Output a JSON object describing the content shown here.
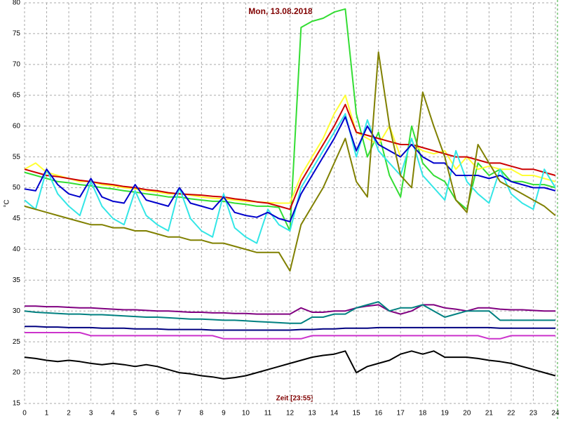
{
  "chart_data": {
    "type": "line",
    "title": "Mon, 13.08.2018",
    "x_label": "Zeit [23:55]",
    "y_label": "°C",
    "xlim": [
      0,
      24
    ],
    "ylim": [
      15,
      80
    ],
    "xticks": [
      0,
      1,
      2,
      3,
      4,
      5,
      6,
      7,
      8,
      9,
      10,
      11,
      12,
      13,
      14,
      15,
      16,
      17,
      18,
      19,
      20,
      21,
      22,
      23,
      24
    ],
    "yticks": [
      15,
      20,
      25,
      30,
      35,
      40,
      45,
      50,
      55,
      60,
      65,
      70,
      75,
      80
    ],
    "grid": true,
    "x": [
      0,
      0.5,
      1,
      1.5,
      2,
      2.5,
      3,
      3.5,
      4,
      4.5,
      5,
      5.5,
      6,
      6.5,
      7,
      7.5,
      8,
      8.5,
      9,
      9.5,
      10,
      10.5,
      11,
      11.5,
      12,
      12.5,
      13,
      13.5,
      14,
      14.5,
      15,
      15.5,
      16,
      16.5,
      17,
      17.5,
      18,
      18.5,
      19,
      19.5,
      20,
      20.5,
      21,
      21.5,
      22,
      22.5,
      23,
      23.5,
      24
    ],
    "series": [
      {
        "color": "#33dd33",
        "values": [
          52.5,
          52,
          51.5,
          51,
          50.8,
          50.5,
          50.3,
          50,
          49.8,
          49.5,
          49.3,
          49,
          48.8,
          48.5,
          48.5,
          48.2,
          48,
          47.8,
          47.8,
          47.5,
          47.3,
          47,
          47,
          46.8,
          43,
          76,
          77,
          77.5,
          78.5,
          79,
          62,
          55,
          59,
          52,
          48.5,
          60,
          54,
          52,
          51,
          48,
          46.5,
          54,
          52,
          53,
          51,
          51,
          50.5,
          50.5,
          50
        ]
      },
      {
        "color": "#ffff33",
        "values": [
          53,
          54,
          52.5,
          52,
          51.5,
          51,
          51,
          50.5,
          50.3,
          50,
          49.8,
          49.5,
          49.3,
          49,
          49,
          48.8,
          48.5,
          48.3,
          48.2,
          48,
          47.8,
          47.7,
          47.6,
          47.5,
          47.5,
          52,
          55,
          58,
          62,
          65,
          59,
          58,
          57,
          60,
          55,
          57,
          56,
          55.5,
          56,
          53,
          55,
          53,
          53.5,
          53,
          53,
          52,
          52,
          51.5,
          51
        ]
      },
      {
        "color": "#cc0000",
        "values": [
          53,
          52.5,
          52,
          51.8,
          51.5,
          51.2,
          51,
          50.7,
          50.5,
          50.2,
          50,
          49.7,
          49.5,
          49.2,
          49,
          48.9,
          48.8,
          48.6,
          48.5,
          48.2,
          48,
          47.7,
          47.5,
          47,
          46.5,
          51,
          54,
          57,
          60,
          63.5,
          59,
          58.5,
          58,
          57.5,
          57,
          57,
          56.5,
          56,
          55.5,
          55,
          55,
          54.5,
          54,
          54,
          53.5,
          53,
          53,
          52.5,
          52
        ]
      },
      {
        "color": "#33e6e6",
        "values": [
          48,
          46.5,
          53,
          49,
          47,
          45.5,
          51,
          47,
          45,
          44,
          49.5,
          45.5,
          44,
          43,
          50,
          45,
          43,
          42,
          49,
          43.5,
          42,
          41,
          46.5,
          44,
          43,
          50,
          53,
          56,
          59,
          62,
          55,
          61,
          56,
          54,
          52,
          58,
          52,
          50,
          48,
          56,
          51,
          49,
          47.5,
          53,
          49,
          47.5,
          46.5,
          53,
          50
        ]
      },
      {
        "color": "#0000cc",
        "values": [
          49.8,
          49.5,
          53,
          50.5,
          49,
          48.5,
          51.5,
          48.5,
          47.8,
          47.5,
          50.5,
          48,
          47.5,
          47,
          50,
          47.5,
          47,
          46.5,
          48.5,
          46,
          45.5,
          45.2,
          46,
          45,
          44.5,
          49,
          52,
          55,
          58,
          61.5,
          56,
          60,
          57,
          56,
          55,
          57,
          55,
          54,
          54,
          52,
          52,
          52,
          51.5,
          52,
          51,
          50.5,
          50,
          50,
          49.5
        ]
      },
      {
        "color": "#808000",
        "values": [
          47,
          46.5,
          46,
          45.5,
          45,
          44.5,
          44,
          44,
          43.5,
          43.5,
          43,
          43,
          42.5,
          42,
          42,
          41.5,
          41.5,
          41,
          41,
          40.5,
          40,
          39.5,
          39.5,
          39.5,
          36.5,
          44,
          47,
          50,
          54,
          58,
          51,
          48.5,
          72,
          60,
          52,
          50,
          65.5,
          60,
          55,
          48,
          46,
          57,
          54,
          51,
          50,
          49,
          48,
          47,
          45.5
        ]
      },
      {
        "color": "#800080",
        "values": [
          30.8,
          30.8,
          30.7,
          30.7,
          30.6,
          30.5,
          30.5,
          30.4,
          30.3,
          30.2,
          30.2,
          30.1,
          30,
          30,
          29.9,
          29.8,
          29.8,
          29.7,
          29.7,
          29.6,
          29.6,
          29.5,
          29.5,
          29.5,
          29.5,
          30.5,
          29.8,
          29.8,
          30,
          30,
          30.5,
          30.8,
          31,
          30,
          29.5,
          30,
          31,
          31,
          30.5,
          30.3,
          30,
          30.5,
          30.5,
          30.3,
          30.2,
          30.2,
          30.1,
          30,
          30
        ]
      },
      {
        "color": "#008080",
        "values": [
          30,
          29.8,
          29.7,
          29.6,
          29.5,
          29.5,
          29.4,
          29.4,
          29.3,
          29.2,
          29.1,
          29,
          29,
          28.9,
          28.8,
          28.7,
          28.7,
          28.6,
          28.5,
          28.5,
          28.4,
          28.3,
          28.2,
          28.1,
          28,
          28,
          29,
          29,
          29.5,
          29.5,
          30.5,
          31,
          31.5,
          30,
          30.5,
          30.5,
          31,
          30,
          29,
          29.5,
          30,
          30,
          30,
          28.5,
          28.5,
          28.5,
          28.5,
          28.5,
          28.5
        ]
      },
      {
        "color": "#000080",
        "values": [
          27.5,
          27.5,
          27.4,
          27.4,
          27.3,
          27.3,
          27.3,
          27.2,
          27.2,
          27.2,
          27.1,
          27.1,
          27.1,
          27,
          27,
          27,
          27,
          26.9,
          26.9,
          26.9,
          26.9,
          26.9,
          26.9,
          26.9,
          26.9,
          27,
          27,
          27.1,
          27.1,
          27.2,
          27.2,
          27.2,
          27.3,
          27.3,
          27.3,
          27.3,
          27.3,
          27.3,
          27.3,
          27.3,
          27.3,
          27.3,
          27.3,
          27.2,
          27.2,
          27.2,
          27.2,
          27.2,
          27.2
        ]
      },
      {
        "color": "#cc33cc",
        "values": [
          26.5,
          26.5,
          26.5,
          26.5,
          26.5,
          26.5,
          26,
          26,
          26,
          26,
          26,
          26,
          26,
          26,
          26,
          26,
          26,
          26,
          25.5,
          25.5,
          25.5,
          25.5,
          25.5,
          25.5,
          25.5,
          25.5,
          26,
          26,
          26,
          26,
          26,
          26,
          26,
          26,
          26,
          26,
          26,
          26,
          26,
          26,
          26,
          26,
          25.5,
          25.5,
          26,
          26,
          26,
          26,
          26
        ]
      },
      {
        "color": "#000000",
        "values": [
          22.5,
          22.3,
          22,
          21.8,
          22,
          21.8,
          21.5,
          21.3,
          21.5,
          21.3,
          21,
          21.3,
          21,
          20.5,
          20,
          19.8,
          19.5,
          19.3,
          19,
          19.2,
          19.5,
          20,
          20.5,
          21,
          21.5,
          22,
          22.5,
          22.8,
          23,
          23.5,
          20,
          21,
          21.5,
          22,
          23,
          23.5,
          23,
          23.5,
          22.5,
          22.5,
          22.5,
          22.3,
          22,
          21.8,
          21.5,
          21,
          20.5,
          20,
          19.5
        ]
      }
    ]
  }
}
